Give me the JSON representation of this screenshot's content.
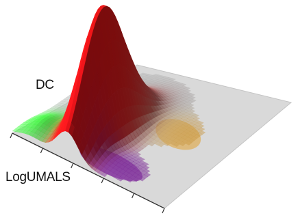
{
  "chart_data": {
    "type": "surface-3d",
    "title": "",
    "ylabel": "DC",
    "xlabel": "LogUMALS",
    "grid": false,
    "series": [
      {
        "color": "#e01010",
        "peak_height": 1.0,
        "u": 0.36,
        "v": 0.28,
        "su": 0.07,
        "sv": 0.16
      },
      {
        "color": "#2ee02e",
        "peak_height": 0.1,
        "u": 0.12,
        "v": 0.12,
        "su": 0.08,
        "sv": 0.1
      },
      {
        "color": "#7a1a9a",
        "peak_height": 0.05,
        "u": 0.55,
        "v": 0.12,
        "su": 0.17,
        "sv": 0.08
      },
      {
        "color": "#e0a030",
        "peak_height": 0.03,
        "u": 0.66,
        "v": 0.52,
        "su": 0.12,
        "sv": 0.1
      },
      {
        "color": "#b0b0b0",
        "peak_height": 0.12,
        "u": 0.24,
        "v": 0.55,
        "su": 0.2,
        "sv": 0.2
      }
    ]
  }
}
